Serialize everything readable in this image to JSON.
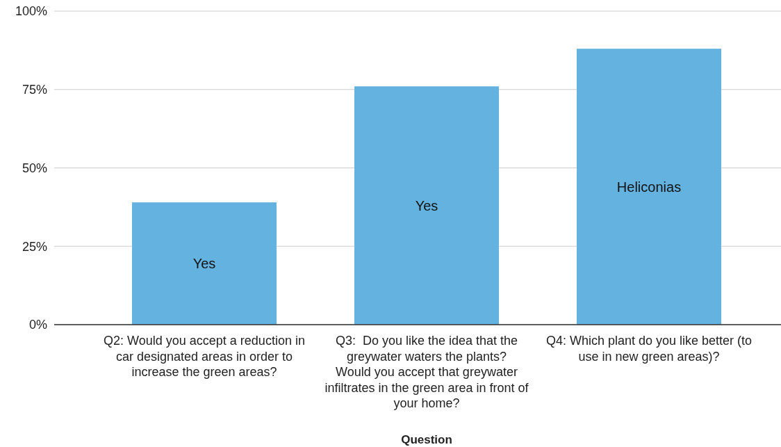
{
  "chart_data": {
    "type": "bar",
    "xlabel": "Question",
    "categories": [
      "Q2: Would you accept a reduction in car designated areas in order to increase the green areas?",
      "Q3:  Do you like the idea that the greywater waters the plants? Would you accept that greywater infiltrates in the green area in front of your home?",
      "Q4: Which plant do you like better (to use in new green areas)?"
    ],
    "values": [
      39,
      76,
      88
    ],
    "color": "#64b2df",
    "ylim": [
      0,
      100
    ],
    "yticks": [
      {
        "value": 0,
        "label": "0%"
      },
      {
        "value": 25,
        "label": "25%"
      },
      {
        "value": 50,
        "label": "50%"
      },
      {
        "value": 75,
        "label": "75%"
      },
      {
        "value": 100,
        "label": "100%"
      }
    ],
    "grid": "y",
    "annotations": [
      "Yes",
      "Yes",
      "Heliconias"
    ]
  }
}
